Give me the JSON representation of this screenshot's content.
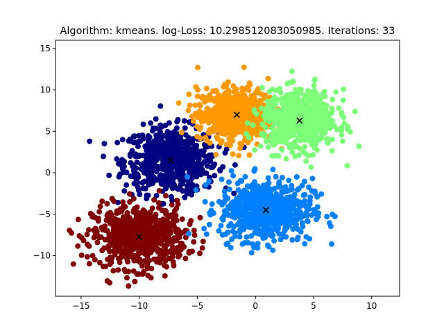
{
  "chart_data": {
    "type": "scatter",
    "title": "Algorithm: kmeans. log-Loss: 10.298512083050985. Iterations: 33",
    "xlabel": "",
    "ylabel": "",
    "xlim": [
      -17.2,
      12.4
    ],
    "ylim": [
      -14.9,
      16.0
    ],
    "xticks": [
      -15,
      -10,
      -5,
      0,
      5,
      10
    ],
    "yticks": [
      -10,
      -5,
      0,
      5,
      10,
      15
    ],
    "grid": false,
    "legend": "none",
    "clusters": [
      {
        "color": "#000080",
        "center": [
          -7.3,
          1.5
        ],
        "spread": [
          2.0,
          2.0
        ],
        "count": 650
      },
      {
        "color": "#800000",
        "center": [
          -10.0,
          -7.7
        ],
        "spread": [
          2.0,
          1.9
        ],
        "count": 650
      },
      {
        "color": "#0080ff",
        "center": [
          0.9,
          -4.5
        ],
        "spread": [
          2.0,
          1.9
        ],
        "count": 650
      },
      {
        "color": "#ff9900",
        "center": [
          -1.6,
          7.0
        ],
        "spread": [
          1.7,
          1.6
        ],
        "count": 650
      },
      {
        "color": "#7dff7a",
        "center": [
          3.8,
          6.3
        ],
        "spread": [
          1.6,
          1.8
        ],
        "count": 650
      }
    ],
    "centroids": [
      {
        "x": -7.3,
        "y": 1.5
      },
      {
        "x": -10.0,
        "y": -7.7
      },
      {
        "x": 0.9,
        "y": -4.5
      },
      {
        "x": -1.6,
        "y": 7.0
      },
      {
        "x": 3.8,
        "y": 6.3
      }
    ],
    "centroid_marker": "x",
    "centroid_color": "#000000"
  }
}
